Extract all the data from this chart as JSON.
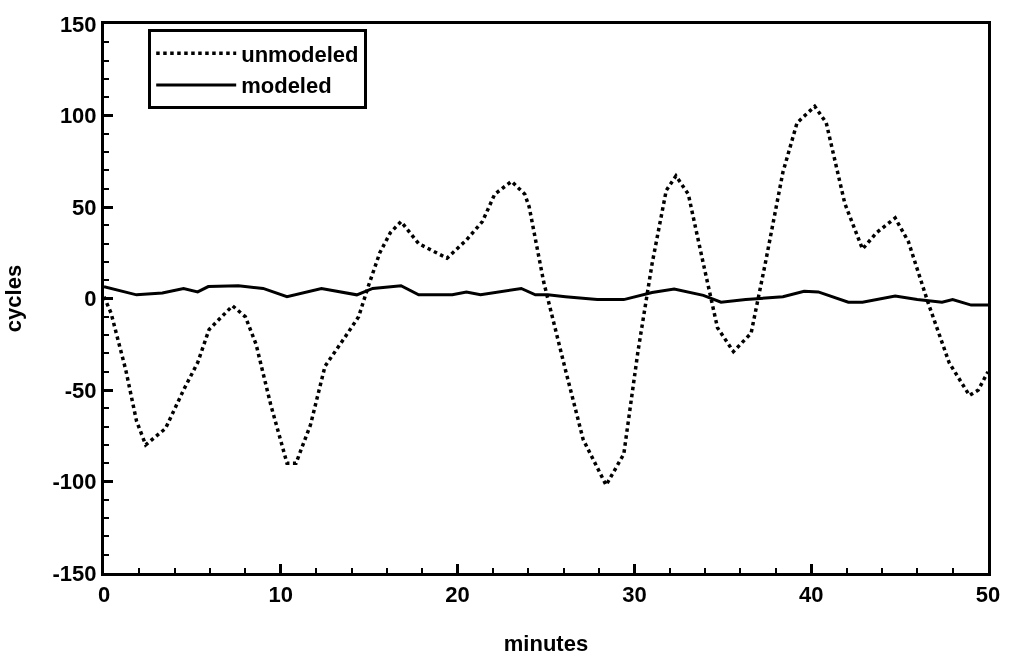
{
  "chart_data": {
    "type": "line",
    "xlabel": "minutes",
    "ylabel": "cycles",
    "xlim": [
      0,
      50
    ],
    "xticks": [
      0,
      10,
      20,
      30,
      40,
      50
    ],
    "ylim": [
      -150,
      150
    ],
    "yticks": [
      -150,
      -100,
      -50,
      0,
      50,
      100,
      150
    ],
    "legend": "top left",
    "marker": "none",
    "series": [
      {
        "name": "unmodeled",
        "color": "#000000",
        "line_style": "dotted",
        "x": [
          0,
          0.4,
          1.23,
          1.84,
          2.36,
          3.48,
          4.5,
          5.3,
          5.94,
          7.27,
          8.0,
          8.6,
          9.43,
          10.35,
          10.86,
          11.68,
          12.5,
          13.5,
          14.4,
          14.96,
          15.6,
          16.2,
          16.8,
          17.8,
          19.4,
          20.5,
          21.4,
          22.1,
          23.05,
          23.8,
          24.05,
          24.87,
          26.1,
          27.1,
          28.4,
          29.4,
          30.2,
          31.0,
          31.8,
          32.35,
          33.05,
          33.9,
          34.7,
          35.6,
          36.6,
          37.4,
          38.4,
          39.2,
          40.2,
          40.85,
          41.9,
          42.9,
          43.7,
          44.75,
          45.5,
          46.6,
          47.8,
          48.95,
          49.45,
          50
        ],
        "values": [
          1,
          -8,
          -39,
          -67,
          -80,
          -71,
          -50,
          -35,
          -17,
          -4,
          -10,
          -25,
          -58,
          -90,
          -90,
          -69,
          -37,
          -23,
          -10,
          7,
          25,
          36,
          42,
          30,
          22,
          32,
          42,
          57,
          64,
          57,
          50,
          9,
          -39,
          -77,
          -102,
          -85,
          -29,
          19,
          59,
          67,
          57,
          19,
          -16,
          -29,
          -19,
          19,
          69,
          96,
          105,
          96,
          52,
          27,
          36,
          44,
          31,
          -2,
          -35,
          -53,
          -50,
          -40
        ]
      },
      {
        "name": "modeled",
        "color": "#000000",
        "line_style": "solid",
        "x": [
          0,
          1.84,
          3.3,
          4.5,
          5.3,
          5.9,
          7.6,
          9,
          10.35,
          12.3,
          14.3,
          15.2,
          16.8,
          17.8,
          19.7,
          20.5,
          21.3,
          23.6,
          24.4,
          25.1,
          26.1,
          27.9,
          29.4,
          31.0,
          32.25,
          33.9,
          34.9,
          36.3,
          38.4,
          39.6,
          40.4,
          42.1,
          42.9,
          44.75,
          46,
          47.4,
          48,
          49.05,
          50
        ],
        "values": [
          6.5,
          2,
          3,
          5.5,
          3.6,
          6.5,
          7,
          5.5,
          1,
          5.5,
          2,
          5.5,
          7,
          2,
          2,
          3.6,
          2,
          5.5,
          2,
          2,
          1,
          -0.6,
          -0.6,
          3.3,
          5.2,
          1.7,
          -2,
          -0.6,
          1,
          4,
          3.6,
          -2,
          -2,
          1.3,
          -0.6,
          -2,
          -0.6,
          -3.6,
          -3.6
        ]
      }
    ]
  }
}
